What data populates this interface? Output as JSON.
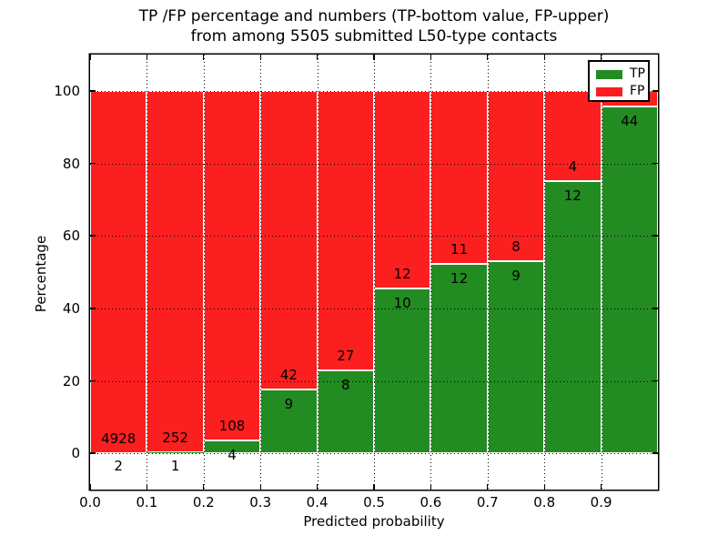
{
  "title": {
    "line1": "TP /FP percentage and numbers (TP-bottom value, FP-upper)",
    "line2": "from among 5505 submitted L50-type contacts"
  },
  "axes": {
    "xlabel": "Predicted probability",
    "ylabel": "Percentage"
  },
  "legend": {
    "items": [
      {
        "label": "TP",
        "color": "#228b22"
      },
      {
        "label": "FP",
        "color": "#fb1f1f"
      }
    ]
  },
  "colors": {
    "tp": "#228b22",
    "fp": "#fb1f1f",
    "background": "#ffffff",
    "axis": "#000000",
    "grid": "#000000"
  },
  "chart_data": {
    "type": "bar",
    "stacked": true,
    "title": "TP /FP percentage and numbers (TP-bottom value, FP-upper) from among 5505 submitted L50-type contacts",
    "xlabel": "Predicted probability",
    "ylabel": "Percentage",
    "xlim": [
      0.0,
      1.0
    ],
    "ylim": [
      -10,
      110
    ],
    "grid": "dotted, on x ticks and y ticks",
    "legend_position": "upper right",
    "xticks": [
      "0.0",
      "0.1",
      "0.2",
      "0.3",
      "0.4",
      "0.5",
      "0.6",
      "0.7",
      "0.8",
      "0.9"
    ],
    "yticks": [
      0,
      20,
      40,
      60,
      80,
      100
    ],
    "series": [
      {
        "name": "TP",
        "color": "#228b22",
        "position": "bottom"
      },
      {
        "name": "FP",
        "color": "#fb1f1f",
        "position": "top"
      }
    ],
    "bins": [
      {
        "x0": 0.0,
        "x1": 0.1,
        "tp": 2,
        "fp": 4928,
        "tp_pct": 0.04
      },
      {
        "x0": 0.1,
        "x1": 0.2,
        "tp": 1,
        "fp": 252,
        "tp_pct": 0.4
      },
      {
        "x0": 0.2,
        "x1": 0.3,
        "tp": 4,
        "fp": 108,
        "tp_pct": 3.57
      },
      {
        "x0": 0.3,
        "x1": 0.4,
        "tp": 9,
        "fp": 42,
        "tp_pct": 17.65
      },
      {
        "x0": 0.4,
        "x1": 0.5,
        "tp": 8,
        "fp": 27,
        "tp_pct": 22.86
      },
      {
        "x0": 0.5,
        "x1": 0.6,
        "tp": 10,
        "fp": 12,
        "tp_pct": 45.45
      },
      {
        "x0": 0.6,
        "x1": 0.7,
        "tp": 12,
        "fp": 11,
        "tp_pct": 52.17
      },
      {
        "x0": 0.7,
        "x1": 0.8,
        "tp": 9,
        "fp": 8,
        "tp_pct": 52.94
      },
      {
        "x0": 0.8,
        "x1": 0.9,
        "tp": 12,
        "fp": 4,
        "tp_pct": 75.0
      },
      {
        "x0": 0.9,
        "x1": 1.0,
        "tp": 44,
        "fp": null,
        "tp_pct": 95.7
      }
    ]
  }
}
